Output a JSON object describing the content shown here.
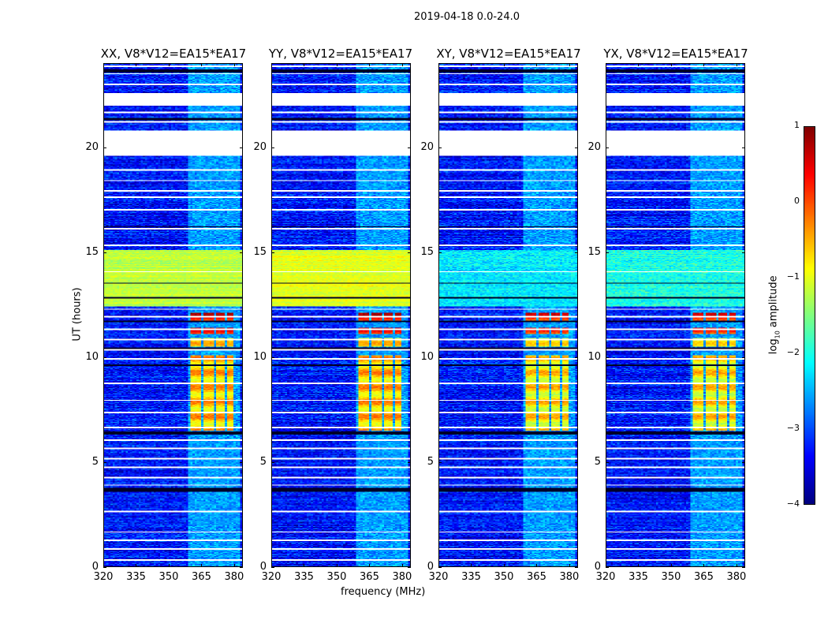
{
  "chart_data": {
    "type": "heatmap",
    "title": "2019-04-18 0.0-24.0",
    "xlabel": "frequency (MHz)",
    "ylabel": "UT (hours)",
    "xlim": [
      320,
      384
    ],
    "ylim": [
      0,
      24
    ],
    "xticks": [
      320,
      335,
      350,
      365,
      380
    ],
    "yticks": [
      0,
      5,
      10,
      15,
      20
    ],
    "colorbar": {
      "label_main": "log",
      "label_sub": "10",
      "label_rest": " amplitude",
      "range": [
        -4,
        1
      ],
      "ticks": [
        -4,
        -3,
        -2,
        -1,
        0,
        1
      ],
      "colormap": "jet"
    },
    "panels": [
      {
        "title": "XX, V8*V12=EA15*EA17",
        "band_level": -1.2
      },
      {
        "title": "YY, V8*V12=EA15*EA17",
        "band_level": -1.0
      },
      {
        "title": "XY, V8*V12=EA15*EA17",
        "band_level": -2.2
      },
      {
        "title": "YX, V8*V12=EA15*EA17",
        "band_level": -2.0
      }
    ],
    "background_level": -3.3,
    "band_hours": [
      12.4,
      15.1
    ],
    "flagged_hours": [
      [
        19.6,
        20.8
      ],
      [
        22.0,
        22.6
      ],
      [
        0.25,
        0.32
      ],
      [
        0.8,
        0.87
      ],
      [
        1.2,
        1.26
      ],
      [
        1.6,
        1.66
      ],
      [
        2.6,
        2.66
      ],
      [
        3.85,
        3.9
      ],
      [
        4.2,
        4.26
      ],
      [
        4.7,
        4.76
      ],
      [
        5.1,
        5.16
      ],
      [
        5.6,
        5.66
      ],
      [
        6.0,
        6.08
      ],
      [
        6.6,
        6.66
      ],
      [
        7.3,
        7.38
      ],
      [
        7.9,
        7.95
      ],
      [
        8.7,
        8.78
      ],
      [
        9.85,
        9.92
      ],
      [
        10.3,
        10.38
      ],
      [
        10.8,
        10.86
      ],
      [
        11.3,
        11.36
      ],
      [
        11.9,
        11.96
      ],
      [
        12.25,
        12.3
      ],
      [
        14.05,
        14.1
      ],
      [
        15.3,
        15.36
      ],
      [
        16.1,
        16.18
      ],
      [
        17.0,
        17.06
      ],
      [
        17.6,
        17.66
      ],
      [
        17.9,
        17.96
      ],
      [
        18.4,
        18.46
      ],
      [
        18.9,
        18.96
      ],
      [
        21.2,
        21.25
      ],
      [
        21.65,
        21.72
      ],
      [
        23.0,
        23.06
      ],
      [
        23.5,
        23.56
      ],
      [
        23.85,
        23.92
      ]
    ],
    "dark_hours": [
      [
        3.55,
        3.75
      ],
      [
        6.3,
        6.45
      ],
      [
        9.55,
        9.65
      ],
      [
        10.4,
        10.45
      ],
      [
        11.65,
        11.75
      ],
      [
        12.8,
        12.85
      ],
      [
        13.5,
        13.55
      ],
      [
        16.2,
        16.25
      ],
      [
        21.3,
        21.42
      ],
      [
        23.6,
        23.75
      ]
    ],
    "rfi_channels": [
      [
        360.5,
        365
      ],
      [
        366,
        371
      ],
      [
        372,
        376
      ],
      [
        377,
        380.5
      ]
    ],
    "rfi": [
      {
        "hours": [
          6.5,
          10.1
        ],
        "level": -0.6
      },
      {
        "hours": [
          11.1,
          11.4
        ],
        "level": 0.2
      },
      {
        "hours": [
          11.7,
          12.1
        ],
        "level": 0.4
      },
      {
        "hours": [
          10.5,
          10.9
        ],
        "level": -0.8
      }
    ],
    "persistent_rfi": {
      "freq": [
        359,
        383
      ],
      "level": -2.6
    }
  }
}
